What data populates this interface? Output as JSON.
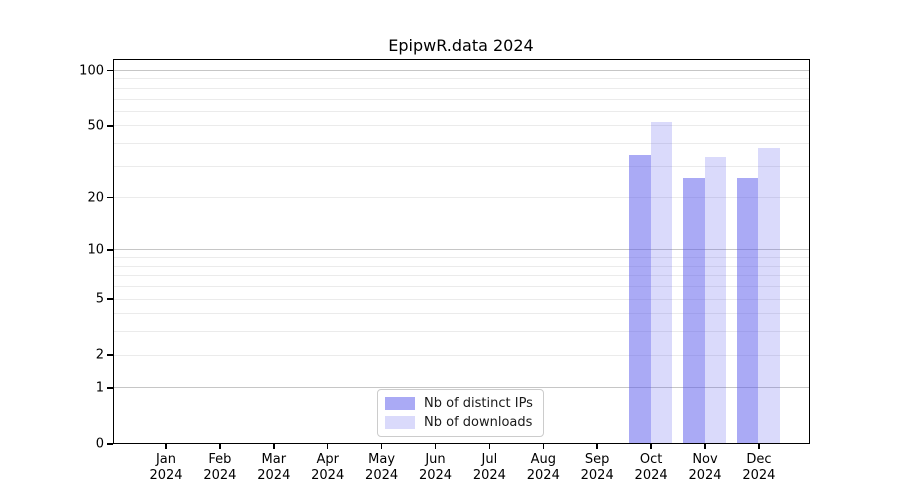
{
  "chart_data": {
    "type": "bar",
    "title": "EpipwR.data 2024",
    "categories": [
      "Jan",
      "Feb",
      "Mar",
      "Apr",
      "May",
      "Jun",
      "Jul",
      "Aug",
      "Sep",
      "Oct",
      "Nov",
      "Dec"
    ],
    "xtick_year": "2024",
    "series": [
      {
        "name": "Nb of distinct IPs",
        "color": "rgba(85,85,235,0.50)",
        "values": [
          0,
          0,
          0,
          0,
          0,
          0,
          0,
          0,
          0,
          35,
          26,
          26
        ]
      },
      {
        "name": "Nb of downloads",
        "color": "rgba(85,85,235,0.22)",
        "values": [
          0,
          0,
          0,
          0,
          0,
          0,
          0,
          0,
          0,
          53,
          34,
          38
        ]
      }
    ],
    "yscale": "log1p",
    "ylim": [
      0,
      116
    ],
    "yticks": [
      0,
      1,
      2,
      5,
      10,
      20,
      50,
      100
    ],
    "gridlines": {
      "major": [
        1,
        10,
        100
      ],
      "minor": [
        2,
        3,
        4,
        5,
        6,
        7,
        8,
        9,
        20,
        30,
        40,
        50,
        60,
        70,
        80,
        90
      ]
    },
    "legend_position": "lower center",
    "colors": {
      "bar_base": "#5555eb",
      "axis": "#000000",
      "major_grid": "#c6c6c6",
      "minor_grid": "#ebebeb",
      "background": "#ffffff"
    }
  }
}
